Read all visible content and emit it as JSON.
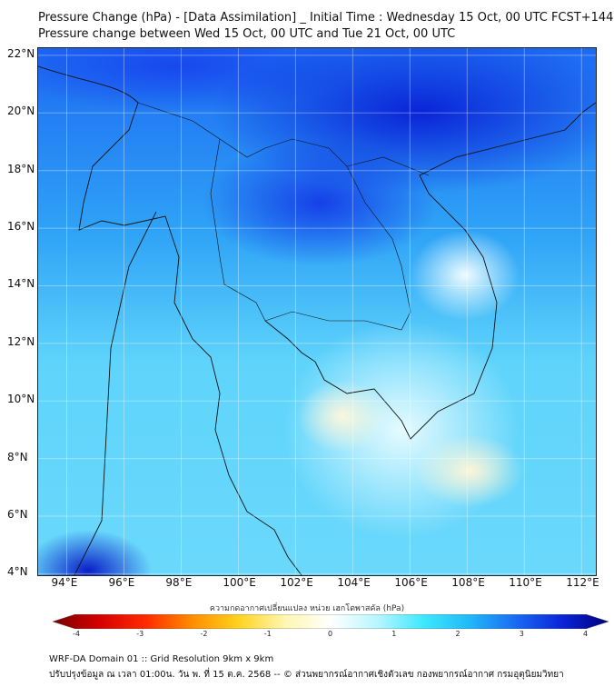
{
  "header": {
    "title_line1": "Pressure Change (hPa) - [Data Assimilation] _ Initial Time : Wednesday 15 Oct, 00 UTC FCST+144",
    "title_line2": "Pressure change between Wed 15 Oct, 00 UTC and Tue 21 Oct, 00 UTC"
  },
  "map": {
    "lat_labels": [
      "22°N",
      "20°N",
      "18°N",
      "16°N",
      "14°N",
      "12°N",
      "10°N",
      "8°N",
      "6°N",
      "4°N"
    ],
    "lat_values": [
      22,
      20,
      18,
      16,
      14,
      12,
      10,
      8,
      6,
      4
    ],
    "lon_labels": [
      "94°E",
      "96°E",
      "98°E",
      "100°E",
      "102°E",
      "104°E",
      "106°E",
      "108°E",
      "110°E",
      "112°E"
    ],
    "lon_values": [
      94,
      96,
      98,
      100,
      102,
      104,
      106,
      108,
      110,
      112
    ],
    "extent": {
      "lon": [
        93,
        112.5
      ],
      "lat": [
        3.95,
        22.25
      ]
    }
  },
  "colorbar": {
    "label": "ความกดอากาศเปลี่ยนแปลง หน่วย เฮกโตพาสคัล (hPa)",
    "ticks": [
      "-4",
      "-3",
      "-2",
      "-1",
      "0",
      "1",
      "2",
      "3",
      "4"
    ],
    "range": [
      -4,
      4
    ],
    "colors": [
      "#7a0000",
      "#d40000",
      "#ff2a00",
      "#ff8c00",
      "#ffd21e",
      "#fff6b0",
      "#ffffff",
      "#b8f6ff",
      "#3ee8ff",
      "#22b8f8",
      "#1a6af2",
      "#0a24d8",
      "#00007a"
    ]
  },
  "footer": {
    "line1": "WRF-DA Domain 01 :: Grid Resolution 9km x 9km",
    "line2": "ปรับปรุงข้อมูล ณ เวลา 01:00น. วัน พ. ที่ 15 ต.ค. 2568 -- © ส่วนพยากรณ์อากาศเชิงตัวเลข กองพยากรณ์อากาศ กรมอุตุนิยมวิทยา"
  }
}
